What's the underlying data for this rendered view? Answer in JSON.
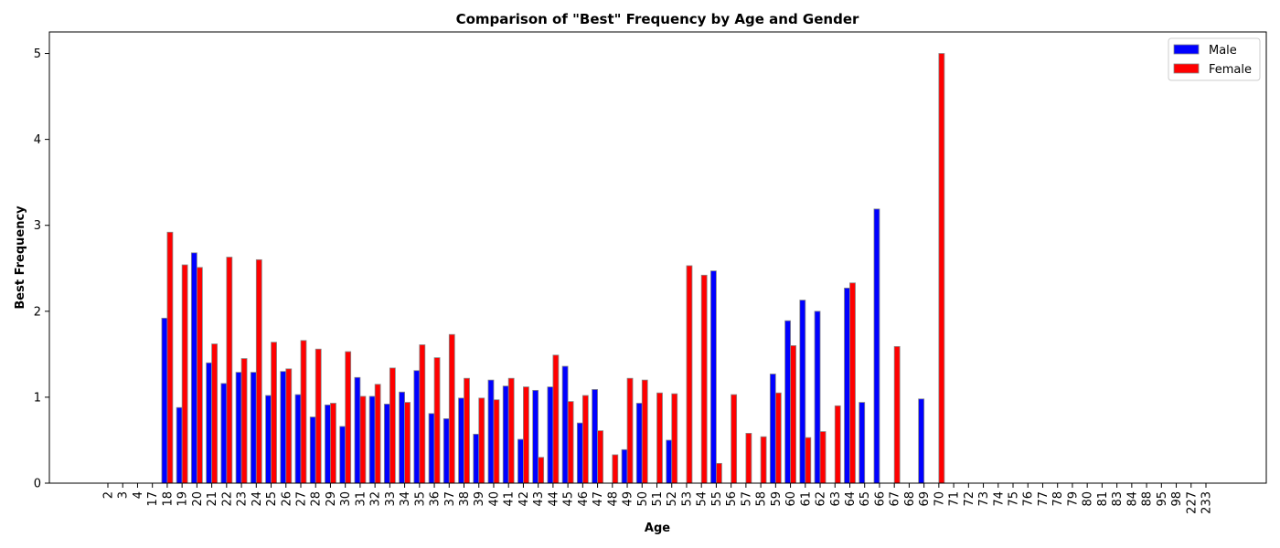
{
  "chart_data": {
    "type": "bar",
    "title": "Comparison of \"Best\" Frequency by Age and Gender",
    "xlabel": "Age",
    "ylabel": "Best Frequency",
    "ylim": [
      0,
      5.25
    ],
    "yticks": [
      0,
      1,
      2,
      3,
      4,
      5
    ],
    "grid": false,
    "legend": "top-right",
    "categories": [
      "2",
      "3",
      "4",
      "17",
      "18",
      "19",
      "20",
      "21",
      "22",
      "23",
      "24",
      "25",
      "26",
      "27",
      "28",
      "29",
      "30",
      "31",
      "32",
      "33",
      "34",
      "35",
      "36",
      "37",
      "38",
      "39",
      "40",
      "41",
      "42",
      "43",
      "44",
      "45",
      "46",
      "47",
      "48",
      "49",
      "50",
      "51",
      "52",
      "53",
      "54",
      "55",
      "56",
      "57",
      "58",
      "59",
      "60",
      "61",
      "62",
      "63",
      "64",
      "65",
      "66",
      "67",
      "68",
      "69",
      "70",
      "71",
      "72",
      "73",
      "74",
      "75",
      "76",
      "77",
      "78",
      "79",
      "80",
      "81",
      "83",
      "84",
      "88",
      "95",
      "98",
      "227",
      "233"
    ],
    "series": [
      {
        "name": "Male",
        "color": "#0000ff",
        "values": [
          0,
          0,
          0,
          0,
          1.92,
          0.88,
          2.68,
          1.4,
          1.16,
          1.29,
          1.29,
          1.02,
          1.3,
          1.03,
          0.77,
          0.91,
          0.66,
          1.23,
          1.01,
          0.92,
          1.06,
          1.31,
          0.81,
          0.75,
          0.99,
          0.57,
          1.2,
          1.13,
          0.51,
          1.08,
          1.12,
          1.36,
          0.7,
          1.09,
          0,
          0.39,
          0.93,
          0,
          0.5,
          0,
          0,
          2.47,
          0,
          0,
          0,
          1.27,
          1.89,
          2.13,
          2.0,
          0,
          2.27,
          0.94,
          3.19,
          0,
          0,
          0.98,
          0,
          0,
          0,
          0,
          0,
          0,
          0,
          0,
          0,
          0,
          0,
          0,
          0,
          0,
          0,
          0,
          0,
          0,
          0
        ]
      },
      {
        "name": "Female",
        "color": "#ff0000",
        "values": [
          0,
          0,
          0,
          0,
          2.92,
          2.54,
          2.51,
          1.62,
          2.63,
          1.45,
          2.6,
          1.64,
          1.33,
          1.66,
          1.56,
          0.93,
          1.53,
          1.01,
          1.15,
          1.34,
          0.94,
          1.61,
          1.46,
          1.73,
          1.22,
          0.99,
          0.97,
          1.22,
          1.12,
          0.3,
          1.49,
          0.95,
          1.02,
          0.61,
          0.33,
          1.22,
          1.2,
          1.05,
          1.04,
          2.53,
          2.42,
          0.23,
          1.03,
          0.58,
          0.54,
          1.05,
          1.6,
          0.53,
          0.6,
          0.9,
          2.33,
          0,
          0,
          1.59,
          0,
          0,
          5.0,
          0,
          0,
          0,
          0,
          0,
          0,
          0,
          0,
          0,
          0,
          0,
          0,
          0,
          0,
          0,
          0,
          0,
          0
        ]
      }
    ]
  }
}
